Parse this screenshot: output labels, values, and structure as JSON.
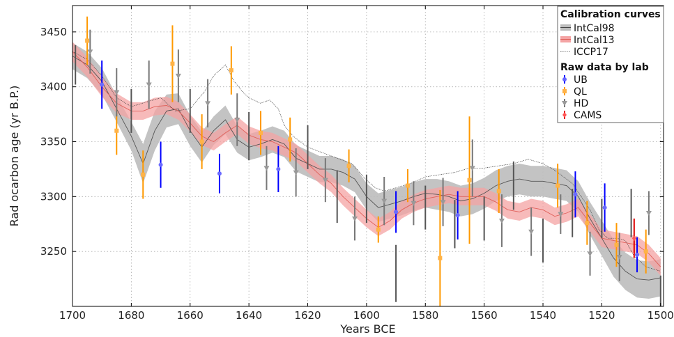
{
  "chart_data": {
    "type": "scatter",
    "xlabel": "Years BCE",
    "ylabel": "Rad ocarbon age (yr B.P.)",
    "xlim": [
      1700,
      1499
    ],
    "ylim": [
      3200,
      3474
    ],
    "x_ticks": [
      1700,
      1680,
      1660,
      1640,
      1620,
      1600,
      1580,
      1560,
      1540,
      1520,
      1500
    ],
    "y_ticks": [
      3250,
      3300,
      3350,
      3400,
      3450
    ],
    "grid": true,
    "legend_position": "top-right",
    "legend": {
      "curves_title": "Calibration curves",
      "labs_title": "Raw data by lab"
    },
    "curves": [
      {
        "name": "IntCal98",
        "color": "#555555",
        "band_color": "#bdbdbd",
        "x": [
          1700,
          1695,
          1690,
          1685,
          1680,
          1676,
          1672,
          1668,
          1664,
          1660,
          1656,
          1652,
          1648,
          1644,
          1640,
          1636,
          1632,
          1628,
          1624,
          1620,
          1616,
          1612,
          1608,
          1604,
          1600,
          1596,
          1592,
          1588,
          1584,
          1580,
          1576,
          1572,
          1568,
          1564,
          1560,
          1556,
          1552,
          1548,
          1544,
          1540,
          1536,
          1532,
          1528,
          1524,
          1520,
          1516,
          1512,
          1508,
          1504,
          1500
        ],
        "y": [
          3428,
          3420,
          3405,
          3380,
          3355,
          3330,
          3360,
          3378,
          3380,
          3360,
          3345,
          3360,
          3370,
          3352,
          3345,
          3348,
          3352,
          3348,
          3335,
          3330,
          3325,
          3325,
          3322,
          3316,
          3300,
          3290,
          3293,
          3296,
          3300,
          3303,
          3302,
          3300,
          3296,
          3298,
          3303,
          3310,
          3314,
          3316,
          3314,
          3314,
          3312,
          3310,
          3300,
          3280,
          3262,
          3244,
          3232,
          3225,
          3224,
          3226
        ],
        "err": [
          12,
          12,
          12,
          12,
          13,
          18,
          18,
          15,
          14,
          14,
          14,
          13,
          13,
          12,
          12,
          12,
          12,
          12,
          12,
          12,
          12,
          12,
          12,
          12,
          12,
          13,
          13,
          13,
          13,
          13,
          14,
          14,
          14,
          14,
          14,
          14,
          14,
          14,
          14,
          14,
          14,
          14,
          14,
          15,
          16,
          17,
          17,
          17,
          17,
          17
        ]
      },
      {
        "name": "IntCal13",
        "color": "#e0605a",
        "band_color": "#f4a3a3",
        "x": [
          1700,
          1695,
          1690,
          1685,
          1680,
          1676,
          1672,
          1668,
          1664,
          1660,
          1656,
          1652,
          1648,
          1644,
          1640,
          1636,
          1632,
          1628,
          1624,
          1620,
          1616,
          1612,
          1608,
          1604,
          1600,
          1596,
          1592,
          1588,
          1584,
          1580,
          1576,
          1572,
          1568,
          1564,
          1560,
          1556,
          1552,
          1548,
          1544,
          1540,
          1536,
          1532,
          1528,
          1524,
          1520,
          1516,
          1512,
          1508,
          1504,
          1500
        ],
        "y": [
          3432,
          3418,
          3400,
          3385,
          3378,
          3378,
          3382,
          3383,
          3378,
          3367,
          3355,
          3350,
          3358,
          3365,
          3356,
          3352,
          3350,
          3345,
          3340,
          3330,
          3320,
          3312,
          3300,
          3290,
          3280,
          3272,
          3278,
          3288,
          3294,
          3298,
          3300,
          3302,
          3300,
          3300,
          3300,
          3295,
          3288,
          3286,
          3290,
          3288,
          3282,
          3285,
          3290,
          3276,
          3262,
          3260,
          3258,
          3256,
          3248,
          3236
        ],
        "err": [
          9,
          9,
          9,
          9,
          8,
          8,
          8,
          8,
          8,
          8,
          8,
          8,
          8,
          8,
          8,
          8,
          8,
          8,
          8,
          8,
          8,
          8,
          8,
          8,
          8,
          8,
          8,
          8,
          8,
          8,
          8,
          8,
          8,
          8,
          8,
          8,
          8,
          8,
          8,
          8,
          8,
          8,
          8,
          8,
          8,
          8,
          8,
          8,
          8,
          8
        ]
      },
      {
        "name": "ICCP17",
        "color": "#333333",
        "x": [
          1700,
          1695,
          1690,
          1685,
          1680,
          1675,
          1670,
          1665,
          1660,
          1655,
          1652,
          1648,
          1645,
          1642,
          1640,
          1636,
          1633,
          1630,
          1628,
          1625,
          1620,
          1615,
          1610,
          1605,
          1600,
          1597,
          1594,
          1590,
          1585,
          1580,
          1575,
          1570,
          1565,
          1560,
          1555,
          1550,
          1545,
          1540,
          1536,
          1533,
          1530,
          1527,
          1524,
          1521,
          1518,
          1515,
          1512,
          1509,
          1505,
          1500
        ],
        "y": [
          3432,
          3425,
          3410,
          3390,
          3382,
          3386,
          3390,
          3378,
          3380,
          3396,
          3410,
          3420,
          3405,
          3395,
          3390,
          3385,
          3388,
          3380,
          3365,
          3355,
          3345,
          3340,
          3335,
          3330,
          3315,
          3308,
          3305,
          3308,
          3312,
          3318,
          3320,
          3322,
          3326,
          3326,
          3328,
          3330,
          3334,
          3330,
          3324,
          3318,
          3312,
          3300,
          3288,
          3270,
          3262,
          3262,
          3260,
          3246,
          3236,
          3232
        ]
      }
    ],
    "series": [
      {
        "name": "UB",
        "color": "#0000ff",
        "marker": "circle",
        "x": [
          1690,
          1670,
          1650,
          1630,
          1590,
          1569,
          1529,
          1519,
          1508
        ],
        "y": [
          3402,
          3329,
          3321,
          3325,
          3286,
          3283,
          3302,
          3290,
          3247
        ],
        "err": [
          22,
          21,
          18,
          21,
          19,
          22,
          21,
          22,
          16
        ]
      },
      {
        "name": "QL",
        "color": "#ff9900",
        "marker": "square",
        "x": [
          1695,
          1685,
          1676,
          1666,
          1656,
          1646,
          1636,
          1626,
          1606,
          1596,
          1586,
          1575,
          1565,
          1555,
          1535,
          1525,
          1515,
          1505
        ],
        "y": [
          3442,
          3360,
          3320,
          3421,
          3350,
          3415,
          3358,
          3352,
          3328,
          3270,
          3310,
          3244,
          3315,
          3305,
          3310,
          3276,
          3256,
          3250
        ],
        "err": [
          22,
          22,
          22,
          35,
          25,
          22,
          20,
          20,
          15,
          12,
          15,
          62,
          58,
          20,
          20,
          20,
          20,
          20
        ]
      },
      {
        "name": "HD",
        "color": "#777777",
        "marker": "triangle-down",
        "x": [
          1694,
          1685,
          1674,
          1664,
          1654,
          1644,
          1634,
          1624,
          1614,
          1604,
          1594,
          1584,
          1574,
          1564,
          1554,
          1544,
          1534,
          1524,
          1514,
          1504
        ],
        "y": [
          3432,
          3395,
          3402,
          3410,
          3385,
          3370,
          3326,
          3322,
          3315,
          3280,
          3296,
          3294,
          3295,
          3326,
          3278,
          3268,
          3284,
          3248,
          3245,
          3285
        ],
        "err": [
          20,
          22,
          22,
          24,
          22,
          24,
          20,
          22,
          20,
          20,
          22,
          20,
          22,
          26,
          24,
          22,
          18,
          20,
          22,
          20
        ]
      },
      {
        "name": "HD",
        "color": "#555555",
        "marker": "none",
        "x": [
          1699,
          1680,
          1660,
          1640,
          1620,
          1610,
          1600,
          1590,
          1580,
          1570,
          1560,
          1550,
          1540,
          1530,
          1520,
          1510,
          1500
        ],
        "y": [
          3420,
          3378,
          3378,
          3355,
          3345,
          3300,
          3298,
          3230,
          3290,
          3275,
          3280,
          3310,
          3260,
          3285,
          3280,
          3285,
          3210
        ],
        "err": [
          18,
          20,
          20,
          22,
          20,
          24,
          22,
          26,
          20,
          22,
          20,
          22,
          20,
          22,
          18,
          22,
          18
        ]
      },
      {
        "name": "CAMS",
        "color": "#dd0000",
        "marker": "diamond",
        "x": [
          1509
        ],
        "y": [
          3262
        ],
        "err": [
          18
        ]
      }
    ]
  }
}
